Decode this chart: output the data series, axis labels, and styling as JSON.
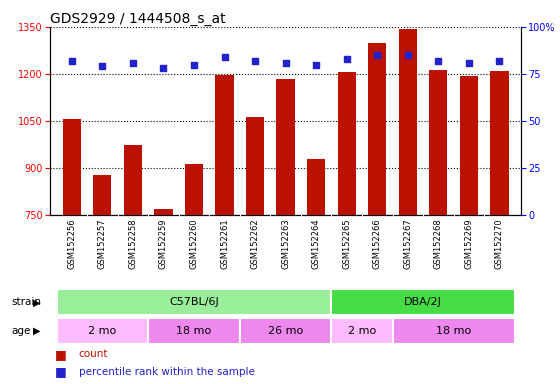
{
  "title": "GDS2929 / 1444508_s_at",
  "samples": [
    "GSM152256",
    "GSM152257",
    "GSM152258",
    "GSM152259",
    "GSM152260",
    "GSM152261",
    "GSM152262",
    "GSM152263",
    "GSM152264",
    "GSM152265",
    "GSM152266",
    "GSM152267",
    "GSM152268",
    "GSM152269",
    "GSM152270"
  ],
  "counts": [
    1057,
    877,
    973,
    770,
    913,
    1197,
    1063,
    1183,
    930,
    1205,
    1298,
    1344,
    1213,
    1193,
    1210
  ],
  "percentiles": [
    82,
    79,
    81,
    78,
    80,
    84,
    82,
    81,
    80,
    83,
    85,
    85,
    82,
    81,
    82
  ],
  "ylim_left": [
    750,
    1350
  ],
  "ylim_right": [
    0,
    100
  ],
  "yticks_left": [
    750,
    900,
    1050,
    1200,
    1350
  ],
  "yticks_right": [
    0,
    25,
    50,
    75,
    100
  ],
  "strain_groups": [
    {
      "label": "C57BL/6J",
      "start": 0,
      "end": 9,
      "color": "#99EE99"
    },
    {
      "label": "DBA/2J",
      "start": 9,
      "end": 15,
      "color": "#44DD44"
    }
  ],
  "age_groups": [
    {
      "label": "2 mo",
      "start": 0,
      "end": 3,
      "color": "#FFBBFF"
    },
    {
      "label": "18 mo",
      "start": 3,
      "end": 6,
      "color": "#EE88EE"
    },
    {
      "label": "26 mo",
      "start": 6,
      "end": 9,
      "color": "#EE88EE"
    },
    {
      "label": "2 mo",
      "start": 9,
      "end": 11,
      "color": "#FFBBFF"
    },
    {
      "label": "18 mo",
      "start": 11,
      "end": 15,
      "color": "#EE88EE"
    }
  ],
  "bar_color": "#BB1100",
  "dot_color": "#2222CC",
  "title_fontsize": 10,
  "tick_fontsize": 7,
  "bar_width": 0.6
}
